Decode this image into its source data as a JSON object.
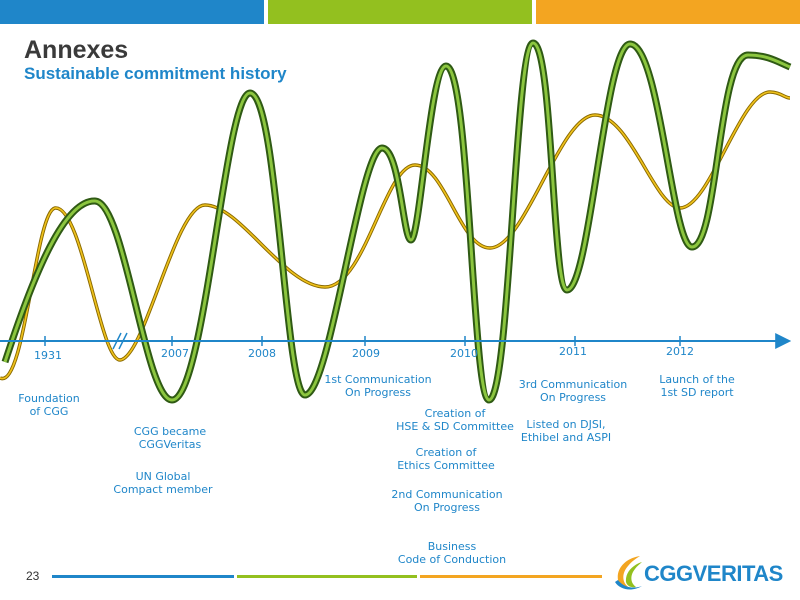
{
  "header": {
    "title": "Annexes",
    "subtitle": "Sustainable commitment history"
  },
  "colors": {
    "blue": "#1f86c9",
    "green": "#93c01f",
    "orange": "#f3a521",
    "dark_green_wave": "#3f6f1e",
    "gold_wave": "#c49a06"
  },
  "timeline": {
    "years": [
      "1931",
      "2007",
      "2008",
      "2009",
      "2010",
      "2011",
      "2012"
    ],
    "events": [
      "Foundation\nof CGG",
      "CGG became\nCGGVeritas",
      "UN Global\nCompact member",
      "1st Communication\nOn Progress",
      "Creation of\nHSE & SD Committee",
      "Creation of\nEthics Committee",
      "2nd Communication\nOn Progress",
      "Business\nCode of Conduction",
      "3rd Communication\nOn Progress",
      "Listed on DJSI,\nEthibel and ASPI",
      "Launch of the\n1st SD report"
    ]
  },
  "footer": {
    "page_number": "23",
    "logo_text": "CGGVERITAS",
    "logo_icon": "cggveritas-swoosh-logo-icon"
  }
}
